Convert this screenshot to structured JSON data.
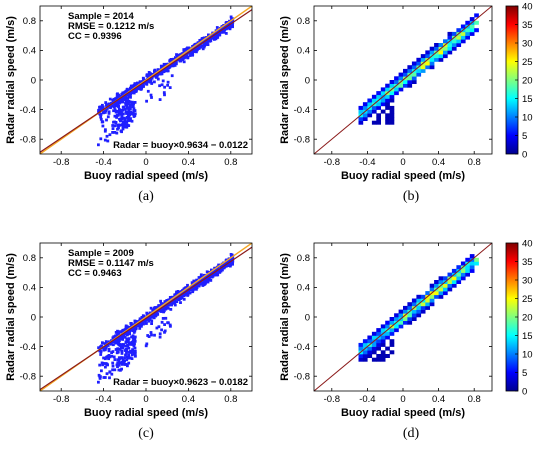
{
  "chart_data": [
    {
      "type": "scatter",
      "panel_label": "(a)",
      "xlabel": "Buoy radial speed (m/s)",
      "ylabel": "Radar radial speed (m/s)",
      "xlim": [
        -1.0,
        1.0
      ],
      "ylim": [
        -1.0,
        1.0
      ],
      "xticks": [
        "-0.8",
        "-0.4",
        "0",
        "0.4",
        "0.8"
      ],
      "yticks": [
        "0.8",
        "0.4",
        "0",
        "-0.4",
        "-0.8"
      ],
      "stats": [
        "Sample = 2014",
        "RMSE = 0.1212 m/s",
        "CC = 0.9396"
      ],
      "fit_label": "Radar = buoy×0.9634 − 0.0122",
      "fit": {
        "slope": 0.9634,
        "intercept": -0.0122
      },
      "point_color": "#1f1fff",
      "fit_color": "#8b1a1a",
      "identity_color": "#f5a623"
    },
    {
      "type": "heatmap",
      "panel_label": "(b)",
      "xlabel": "Buoy radial speed (m/s)",
      "ylabel": "Radar radial speed (m/s)",
      "xlim": [
        -1.0,
        1.0
      ],
      "ylim": [
        -1.0,
        1.0
      ],
      "xticks": [
        "-0.8",
        "-0.4",
        "0",
        "0.4",
        "0.8"
      ],
      "yticks": [
        "0.8",
        "0.4",
        "0",
        "-0.4",
        "-0.8"
      ],
      "colorbar_ticks": [
        "40",
        "35",
        "30",
        "25",
        "20",
        "15",
        "10",
        "5",
        "0"
      ],
      "colorbar_range": [
        0,
        40
      ],
      "colormap": "jet"
    },
    {
      "type": "scatter",
      "panel_label": "(c)",
      "xlabel": "Buoy radial speed (m/s)",
      "ylabel": "Radar radial speed (m/s)",
      "xlim": [
        -1.0,
        1.0
      ],
      "ylim": [
        -1.0,
        1.0
      ],
      "xticks": [
        "-0.8",
        "-0.4",
        "0",
        "0.4",
        "0.8"
      ],
      "yticks": [
        "0.8",
        "0.4",
        "0",
        "-0.4",
        "-0.8"
      ],
      "stats": [
        "Sample = 2009",
        "RMSE = 0.1147 m/s",
        "CC = 0.9463"
      ],
      "fit_label": "Radar = buoy×0.9623 − 0.0182",
      "fit": {
        "slope": 0.9623,
        "intercept": -0.0182
      },
      "point_color": "#1f1fff",
      "fit_color": "#8b1a1a",
      "identity_color": "#f5a623"
    },
    {
      "type": "heatmap",
      "panel_label": "(d)",
      "xlabel": "Buoy radial speed (m/s)",
      "ylabel": "Radar radial speed (m/s)",
      "xlim": [
        -1.0,
        1.0
      ],
      "ylim": [
        -1.0,
        1.0
      ],
      "xticks": [
        "-0.8",
        "-0.4",
        "0",
        "0.4",
        "0.8"
      ],
      "yticks": [
        "0.8",
        "0.4",
        "0",
        "-0.4",
        "-0.8"
      ],
      "colorbar_ticks": [
        "40",
        "35",
        "30",
        "25",
        "20",
        "15",
        "10",
        "5",
        "0"
      ],
      "colorbar_range": [
        0,
        40
      ],
      "colormap": "jet"
    }
  ]
}
